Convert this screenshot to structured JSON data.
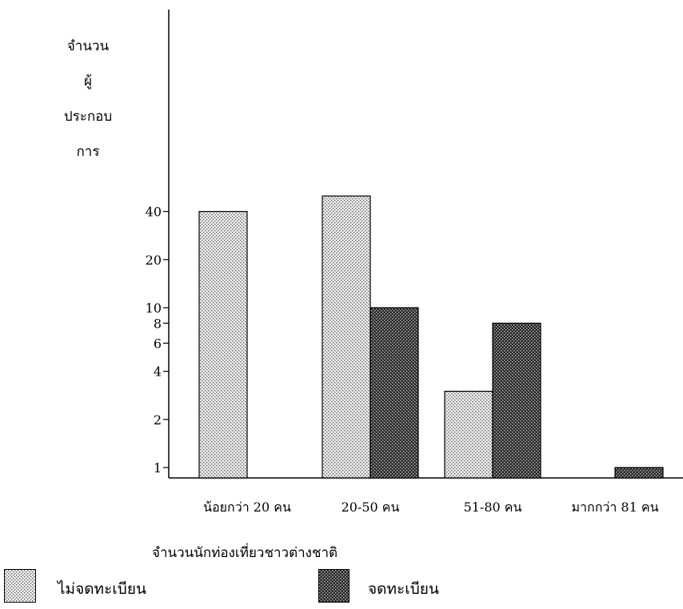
{
  "chart_data": {
    "type": "bar",
    "title": "",
    "ylabel_lines": [
      "จำนวน",
      "ผู้",
      "ประกอบ",
      "การ"
    ],
    "xlabel": "จำนวนนักท่องเที่ยวชาวต่างชาติ",
    "y_scale": "log",
    "yticks": [
      1,
      2,
      4,
      6,
      8,
      10,
      20,
      40
    ],
    "ytick_labels": [
      "1",
      "2",
      "4",
      "6",
      "8",
      "10",
      "20",
      "40"
    ],
    "categories": [
      "น้อยกว่า 20 คน",
      "20-50 คน",
      "51-80 คน",
      "มากกว่า 81 คน"
    ],
    "series": [
      {
        "name": "ไม่จดทะเบียน",
        "values": [
          40,
          50,
          3,
          null
        ],
        "pattern": "light-dots"
      },
      {
        "name": "จดทะเบียน",
        "values": [
          null,
          10,
          8,
          1
        ],
        "pattern": "dark-dots"
      }
    ],
    "legend_position": "bottom"
  }
}
